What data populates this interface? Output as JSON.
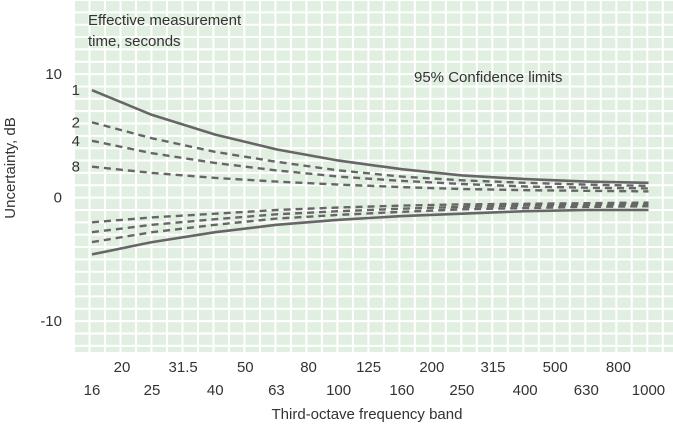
{
  "chart_data": {
    "type": "line",
    "title": "",
    "legend_title_lines": [
      "Effective measurement",
      "time, seconds"
    ],
    "annotation": "95% Confidence limits",
    "xlabel": "Third-octave frequency band",
    "ylabel": "Uncertainty, dB",
    "x_ticks_upper": [
      "20",
      "31.5",
      "50",
      "80",
      "125",
      "200",
      "315",
      "500",
      "800"
    ],
    "x_ticks_lower": [
      "16",
      "25",
      "40",
      "63",
      "100",
      "160",
      "250",
      "400",
      "630",
      "1000"
    ],
    "x_scale": "log",
    "xlim": [
      14,
      1200
    ],
    "ylim": [
      -12.5,
      16
    ],
    "y_ticks": [
      {
        "value": 10,
        "label": "10"
      },
      {
        "value": 0,
        "label": "0"
      },
      {
        "value": -10,
        "label": "-10"
      }
    ],
    "grid": true,
    "background_color": "#e1efe1",
    "grid_color": "#ffffff",
    "line_color": "#666666",
    "series": [
      {
        "name": "1",
        "style": "solid",
        "x": [
          16,
          25,
          40,
          63,
          100,
          160,
          250,
          400,
          630,
          1000
        ],
        "upper": [
          8.7,
          6.7,
          5.1,
          3.9,
          3.0,
          2.3,
          1.8,
          1.5,
          1.3,
          1.2
        ],
        "lower": [
          -4.6,
          -3.6,
          -2.8,
          -2.2,
          -1.8,
          -1.5,
          -1.3,
          -1.1,
          -1.0,
          -1.0
        ]
      },
      {
        "name": "2",
        "style": "dashed",
        "x": [
          16,
          25,
          40,
          63,
          100,
          160,
          250,
          400,
          630,
          1000
        ],
        "upper": [
          6.1,
          4.8,
          3.7,
          2.9,
          2.2,
          1.7,
          1.4,
          1.2,
          1.05,
          0.95
        ],
        "lower": [
          -3.6,
          -2.8,
          -2.2,
          -1.7,
          -1.4,
          -1.15,
          -0.95,
          -0.85,
          -0.75,
          -0.7
        ]
      },
      {
        "name": "4",
        "style": "dashed",
        "x": [
          16,
          25,
          40,
          63,
          100,
          160,
          250,
          400,
          630,
          1000
        ],
        "upper": [
          4.6,
          3.6,
          2.8,
          2.2,
          1.7,
          1.35,
          1.1,
          0.9,
          0.8,
          0.75
        ],
        "lower": [
          -2.8,
          -2.2,
          -1.75,
          -1.35,
          -1.1,
          -0.9,
          -0.75,
          -0.65,
          -0.6,
          -0.55
        ]
      },
      {
        "name": "8",
        "style": "dashed",
        "x": [
          16,
          25,
          40,
          63,
          100,
          160,
          250,
          400,
          630,
          1000
        ],
        "upper": [
          2.5,
          2.0,
          1.6,
          1.3,
          1.05,
          0.85,
          0.7,
          0.6,
          0.55,
          0.5
        ],
        "lower": [
          -2.0,
          -1.6,
          -1.3,
          -1.0,
          -0.8,
          -0.65,
          -0.55,
          -0.5,
          -0.45,
          -0.4
        ]
      }
    ]
  }
}
